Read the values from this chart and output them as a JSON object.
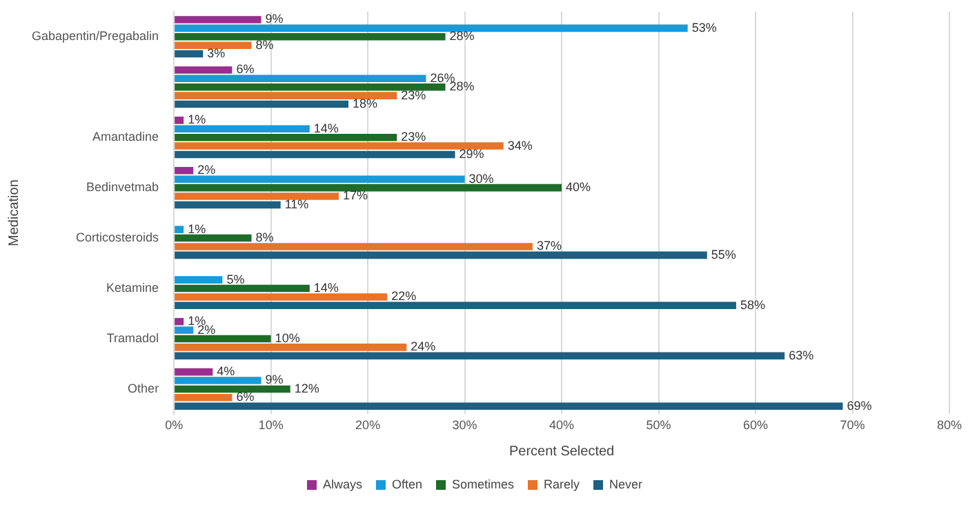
{
  "chart_data": {
    "type": "bar",
    "orientation": "horizontal",
    "xlabel": "Percent Selected",
    "ylabel": "Medication",
    "categories": [
      "Gabapentin/Pregabalin",
      null,
      "Amantadine",
      "Bedinvetmab",
      "Corticosteroids",
      "Ketamine",
      "Tramadol",
      "Other"
    ],
    "series": [
      {
        "name": "Always",
        "color": "#9b2d8f",
        "values": [
          9,
          6,
          1,
          2,
          null,
          null,
          1,
          4
        ],
        "value_labels": [
          "9%",
          "6%",
          "1%",
          "2%",
          null,
          null,
          "1%",
          "4%"
        ]
      },
      {
        "name": "Often",
        "color": "#1a9ad6",
        "values": [
          53,
          26,
          14,
          30,
          1,
          5,
          2,
          9
        ],
        "value_labels": [
          "53%",
          "26%",
          "14%",
          "30%",
          "1%",
          "5%",
          "2%",
          "9%"
        ]
      },
      {
        "name": "Sometimes",
        "color": "#1e6b2a",
        "values": [
          28,
          28,
          23,
          40,
          8,
          14,
          10,
          12
        ],
        "value_labels": [
          "28%",
          "28%",
          "23%",
          "40%",
          "8%",
          "14%",
          "10%",
          "12%"
        ]
      },
      {
        "name": "Rarely",
        "color": "#e8732a",
        "values": [
          8,
          23,
          34,
          17,
          37,
          22,
          24,
          6
        ],
        "value_labels": [
          "8%",
          "23%",
          "34%",
          "17%",
          "37%",
          "22%",
          "24%",
          "6%"
        ]
      },
      {
        "name": "Never",
        "color": "#1f5f80",
        "values": [
          3,
          18,
          29,
          11,
          55,
          58,
          63,
          69
        ],
        "value_labels": [
          "3%",
          "18%",
          "29%",
          "11%",
          "55%",
          "58%",
          "63%",
          "69%"
        ]
      }
    ],
    "xlim": [
      0,
      80
    ],
    "xticks": [
      {
        "value": 0,
        "label": "0%"
      },
      {
        "value": 10,
        "label": "10%"
      },
      {
        "value": 20,
        "label": "20%"
      },
      {
        "value": 30,
        "label": "30%"
      },
      {
        "value": 40,
        "label": "40%"
      },
      {
        "value": 50,
        "label": "50%"
      },
      {
        "value": 60,
        "label": "60%"
      },
      {
        "value": 70,
        "label": "70%"
      },
      {
        "value": 80,
        "label": "80%"
      }
    ],
    "grid": "x",
    "legend": "bottom"
  }
}
